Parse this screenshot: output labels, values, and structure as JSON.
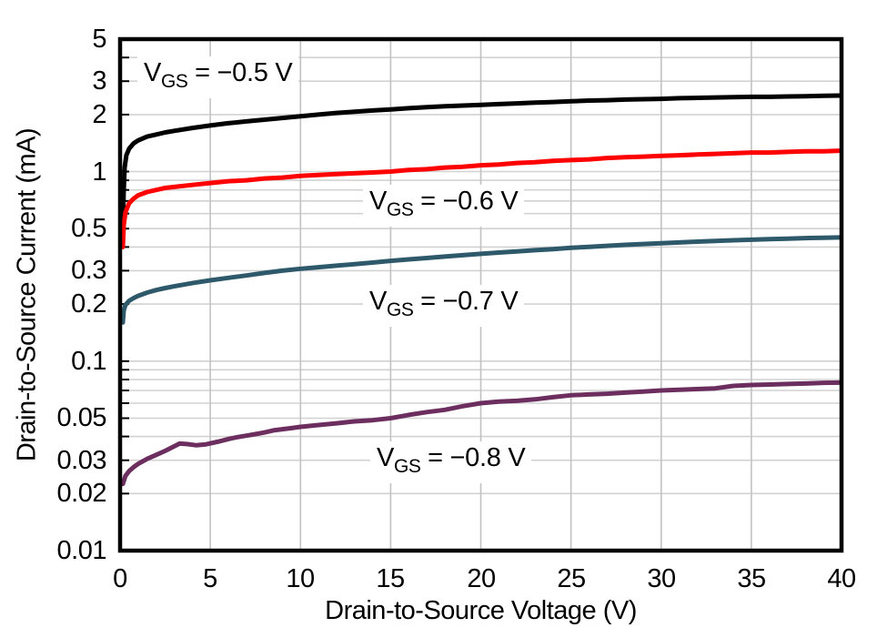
{
  "chart_data": {
    "type": "line",
    "title": "",
    "xlabel": "Drain-to-Source Voltage (V)",
    "ylabel": "Drain-to-Source Current (mA)",
    "xscale": "linear",
    "yscale": "log",
    "xlim": [
      0,
      40
    ],
    "ylim": [
      0.01,
      5
    ],
    "x_ticks": [
      "0",
      "5",
      "10",
      "15",
      "20",
      "25",
      "30",
      "35",
      "40"
    ],
    "y_ticks": [
      "5",
      "3",
      "2",
      "1",
      "0.5",
      "0.3",
      "0.2",
      "0.1",
      "0.05",
      "0.03",
      "0.02",
      "0.01"
    ],
    "grid": true,
    "legend_position": "inline-labels",
    "grid_color_h": "#d2d2d2",
    "grid_color_v": "#c2c2c2",
    "axis_color": "#000000",
    "series": [
      {
        "name": "VGS = −0.5 V",
        "color": "#000000",
        "label": {
          "prefix": "V",
          "sub": "GS",
          "rest": " = −0.5 V"
        },
        "points": [
          [
            0.15,
            0.5
          ],
          [
            0.2,
            0.8
          ],
          [
            0.25,
            1.05
          ],
          [
            0.35,
            1.22
          ],
          [
            0.5,
            1.32
          ],
          [
            0.75,
            1.41
          ],
          [
            1,
            1.46
          ],
          [
            1.5,
            1.53
          ],
          [
            2,
            1.57
          ],
          [
            2.5,
            1.61
          ],
          [
            3,
            1.64
          ],
          [
            4,
            1.7
          ],
          [
            5,
            1.75
          ],
          [
            6,
            1.8
          ],
          [
            7,
            1.84
          ],
          [
            8,
            1.88
          ],
          [
            9,
            1.92
          ],
          [
            10,
            1.96
          ],
          [
            11,
            2.0
          ],
          [
            12,
            2.04
          ],
          [
            13,
            2.07
          ],
          [
            14,
            2.1
          ],
          [
            15,
            2.13
          ],
          [
            16,
            2.16
          ],
          [
            17,
            2.19
          ],
          [
            18,
            2.21
          ],
          [
            19,
            2.23
          ],
          [
            20,
            2.25
          ],
          [
            21,
            2.27
          ],
          [
            22,
            2.29
          ],
          [
            23,
            2.31
          ],
          [
            24,
            2.33
          ],
          [
            25,
            2.35
          ],
          [
            26,
            2.37
          ],
          [
            27,
            2.38
          ],
          [
            28,
            2.4
          ],
          [
            29,
            2.41
          ],
          [
            30,
            2.42
          ],
          [
            31,
            2.44
          ],
          [
            32,
            2.45
          ],
          [
            33,
            2.46
          ],
          [
            34,
            2.47
          ],
          [
            35,
            2.48
          ],
          [
            36,
            2.48
          ],
          [
            37,
            2.49
          ],
          [
            38,
            2.5
          ],
          [
            39,
            2.51
          ],
          [
            40,
            2.52
          ]
        ]
      },
      {
        "name": "VGS = −0.6 V",
        "color": "#ff0000",
        "label": {
          "prefix": "V",
          "sub": "GS",
          "rest": " = −0.6 V"
        },
        "points": [
          [
            0.15,
            0.4
          ],
          [
            0.2,
            0.52
          ],
          [
            0.3,
            0.61
          ],
          [
            0.5,
            0.68
          ],
          [
            0.75,
            0.72
          ],
          [
            1,
            0.75
          ],
          [
            1.5,
            0.78
          ],
          [
            2,
            0.8
          ],
          [
            2.5,
            0.82
          ],
          [
            3,
            0.83
          ],
          [
            4,
            0.85
          ],
          [
            5,
            0.87
          ],
          [
            6,
            0.89
          ],
          [
            7,
            0.9
          ],
          [
            8,
            0.92
          ],
          [
            9,
            0.93
          ],
          [
            10,
            0.95
          ],
          [
            11,
            0.96
          ],
          [
            12,
            0.97
          ],
          [
            13,
            0.98
          ],
          [
            14,
            0.99
          ],
          [
            15,
            1.0
          ],
          [
            16,
            1.02
          ],
          [
            17,
            1.03
          ],
          [
            18,
            1.05
          ],
          [
            19,
            1.06
          ],
          [
            20,
            1.08
          ],
          [
            21,
            1.09
          ],
          [
            22,
            1.11
          ],
          [
            23,
            1.12
          ],
          [
            24,
            1.14
          ],
          [
            25,
            1.15
          ],
          [
            26,
            1.16
          ],
          [
            27,
            1.18
          ],
          [
            28,
            1.19
          ],
          [
            29,
            1.2
          ],
          [
            30,
            1.21
          ],
          [
            31,
            1.22
          ],
          [
            32,
            1.23
          ],
          [
            33,
            1.24
          ],
          [
            34,
            1.25
          ],
          [
            35,
            1.26
          ],
          [
            36,
            1.26
          ],
          [
            37,
            1.27
          ],
          [
            38,
            1.28
          ],
          [
            39,
            1.28
          ],
          [
            40,
            1.29
          ]
        ]
      },
      {
        "name": "VGS = −0.7 V",
        "color": "#2d596b",
        "label": {
          "prefix": "V",
          "sub": "GS",
          "rest": " = −0.7 V"
        },
        "points": [
          [
            0.15,
            0.16
          ],
          [
            0.2,
            0.185
          ],
          [
            0.3,
            0.198
          ],
          [
            0.5,
            0.208
          ],
          [
            0.75,
            0.215
          ],
          [
            1,
            0.221
          ],
          [
            1.5,
            0.23
          ],
          [
            2,
            0.237
          ],
          [
            2.5,
            0.243
          ],
          [
            3,
            0.248
          ],
          [
            4,
            0.258
          ],
          [
            5,
            0.267
          ],
          [
            6,
            0.275
          ],
          [
            7,
            0.283
          ],
          [
            8,
            0.292
          ],
          [
            9,
            0.3
          ],
          [
            10,
            0.307
          ],
          [
            11,
            0.313
          ],
          [
            12,
            0.319
          ],
          [
            13,
            0.325
          ],
          [
            14,
            0.331
          ],
          [
            15,
            0.338
          ],
          [
            16,
            0.344
          ],
          [
            17,
            0.35
          ],
          [
            18,
            0.356
          ],
          [
            19,
            0.362
          ],
          [
            20,
            0.368
          ],
          [
            21,
            0.374
          ],
          [
            22,
            0.379
          ],
          [
            23,
            0.385
          ],
          [
            24,
            0.39
          ],
          [
            25,
            0.396
          ],
          [
            26,
            0.401
          ],
          [
            27,
            0.406
          ],
          [
            28,
            0.411
          ],
          [
            29,
            0.415
          ],
          [
            30,
            0.419
          ],
          [
            31,
            0.423
          ],
          [
            32,
            0.427
          ],
          [
            33,
            0.431
          ],
          [
            34,
            0.434
          ],
          [
            35,
            0.437
          ],
          [
            36,
            0.44
          ],
          [
            37,
            0.443
          ],
          [
            38,
            0.446
          ],
          [
            39,
            0.448
          ],
          [
            40,
            0.45
          ]
        ]
      },
      {
        "name": "VGS = −0.8 V",
        "color": "#6b2e5f",
        "label": {
          "prefix": "V",
          "sub": "GS",
          "rest": " = −0.8 V"
        },
        "points": [
          [
            0.15,
            0.0225
          ],
          [
            0.3,
            0.0248
          ],
          [
            0.5,
            0.0263
          ],
          [
            0.75,
            0.0276
          ],
          [
            1,
            0.0287
          ],
          [
            1.5,
            0.0305
          ],
          [
            2,
            0.032
          ],
          [
            2.5,
            0.0336
          ],
          [
            3,
            0.0355
          ],
          [
            3.3,
            0.0367
          ],
          [
            3.7,
            0.0365
          ],
          [
            4.2,
            0.036
          ],
          [
            4.7,
            0.0363
          ],
          [
            5,
            0.0368
          ],
          [
            5.5,
            0.0377
          ],
          [
            6,
            0.0388
          ],
          [
            6.5,
            0.0397
          ],
          [
            7,
            0.0404
          ],
          [
            7.5,
            0.0412
          ],
          [
            8,
            0.042
          ],
          [
            8.5,
            0.0431
          ],
          [
            9,
            0.0437
          ],
          [
            9.5,
            0.0443
          ],
          [
            10,
            0.045
          ],
          [
            11,
            0.046
          ],
          [
            12,
            0.047
          ],
          [
            13,
            0.0481
          ],
          [
            13.5,
            0.0484
          ],
          [
            14,
            0.0488
          ],
          [
            15,
            0.05
          ],
          [
            16,
            0.052
          ],
          [
            17,
            0.0538
          ],
          [
            18,
            0.0553
          ],
          [
            19,
            0.0578
          ],
          [
            20,
            0.06
          ],
          [
            21,
            0.0612
          ],
          [
            22,
            0.0617
          ],
          [
            23,
            0.0628
          ],
          [
            24,
            0.0645
          ],
          [
            25,
            0.066
          ],
          [
            26,
            0.0667
          ],
          [
            27,
            0.0673
          ],
          [
            28,
            0.0682
          ],
          [
            29,
            0.069
          ],
          [
            30,
            0.07
          ],
          [
            31,
            0.0706
          ],
          [
            32,
            0.0712
          ],
          [
            33,
            0.0718
          ],
          [
            34,
            0.074
          ],
          [
            35,
            0.0748
          ],
          [
            36,
            0.0752
          ],
          [
            37,
            0.0757
          ],
          [
            38,
            0.0762
          ],
          [
            39,
            0.0768
          ],
          [
            40,
            0.077
          ]
        ]
      }
    ]
  }
}
